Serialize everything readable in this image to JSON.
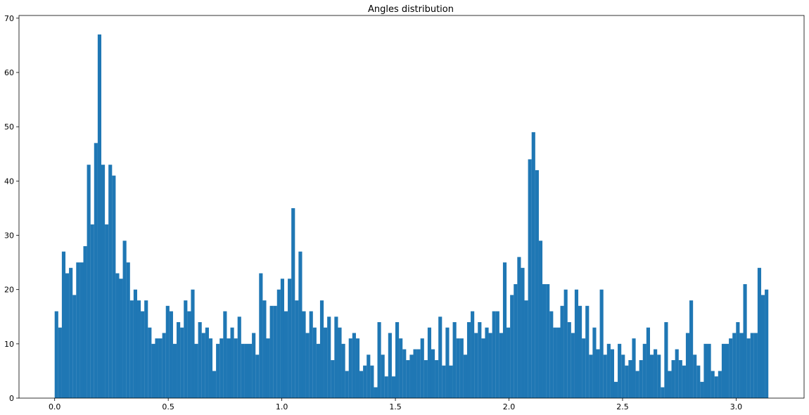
{
  "chart_data": {
    "type": "bar",
    "title": "Angles distribution",
    "xlabel": "",
    "ylabel": "",
    "xlim": [
      -0.157,
      3.299
    ],
    "ylim": [
      0,
      70.5
    ],
    "grid": false,
    "color": "#1f77b4",
    "bin_range": [
      0.0,
      3.1416
    ],
    "x_ticks": [
      "0.0",
      "0.5",
      "1.0",
      "1.5",
      "2.0",
      "2.5",
      "3.0"
    ],
    "y_ticks": [
      "0",
      "10",
      "20",
      "30",
      "40",
      "50",
      "60",
      "70"
    ],
    "values": [
      16,
      13,
      27,
      23,
      24,
      19,
      25,
      25,
      28,
      43,
      32,
      47,
      67,
      43,
      32,
      43,
      41,
      23,
      22,
      29,
      25,
      18,
      20,
      18,
      16,
      18,
      13,
      10,
      11,
      11,
      12,
      17,
      16,
      10,
      14,
      13,
      18,
      16,
      20,
      10,
      14,
      12,
      13,
      11,
      5,
      10,
      11,
      16,
      11,
      13,
      11,
      15,
      10,
      10,
      10,
      12,
      8,
      23,
      18,
      11,
      17,
      17,
      20,
      22,
      16,
      22,
      35,
      18,
      27,
      16,
      12,
      16,
      13,
      10,
      18,
      13,
      15,
      7,
      15,
      13,
      10,
      5,
      11,
      12,
      11,
      5,
      6,
      8,
      6,
      2,
      14,
      8,
      4,
      12,
      4,
      14,
      11,
      9,
      7,
      8,
      9,
      9,
      11,
      7,
      13,
      9,
      7,
      15,
      6,
      13,
      6,
      14,
      11,
      11,
      8,
      14,
      16,
      12,
      14,
      11,
      13,
      12,
      16,
      16,
      12,
      25,
      13,
      19,
      21,
      26,
      24,
      18,
      44,
      49,
      42,
      29,
      21,
      21,
      16,
      13,
      13,
      17,
      20,
      14,
      12,
      20,
      17,
      11,
      17,
      8,
      13,
      9,
      20,
      8,
      10,
      9,
      3,
      10,
      8,
      6,
      7,
      11,
      5,
      7,
      10,
      13,
      8,
      9,
      8,
      2,
      14,
      5,
      7,
      9,
      7,
      6,
      12,
      18,
      8,
      6,
      3,
      10,
      10,
      5,
      4,
      5,
      10,
      10,
      11,
      12,
      14,
      12,
      21,
      11,
      12,
      12,
      24,
      19,
      20
    ]
  }
}
